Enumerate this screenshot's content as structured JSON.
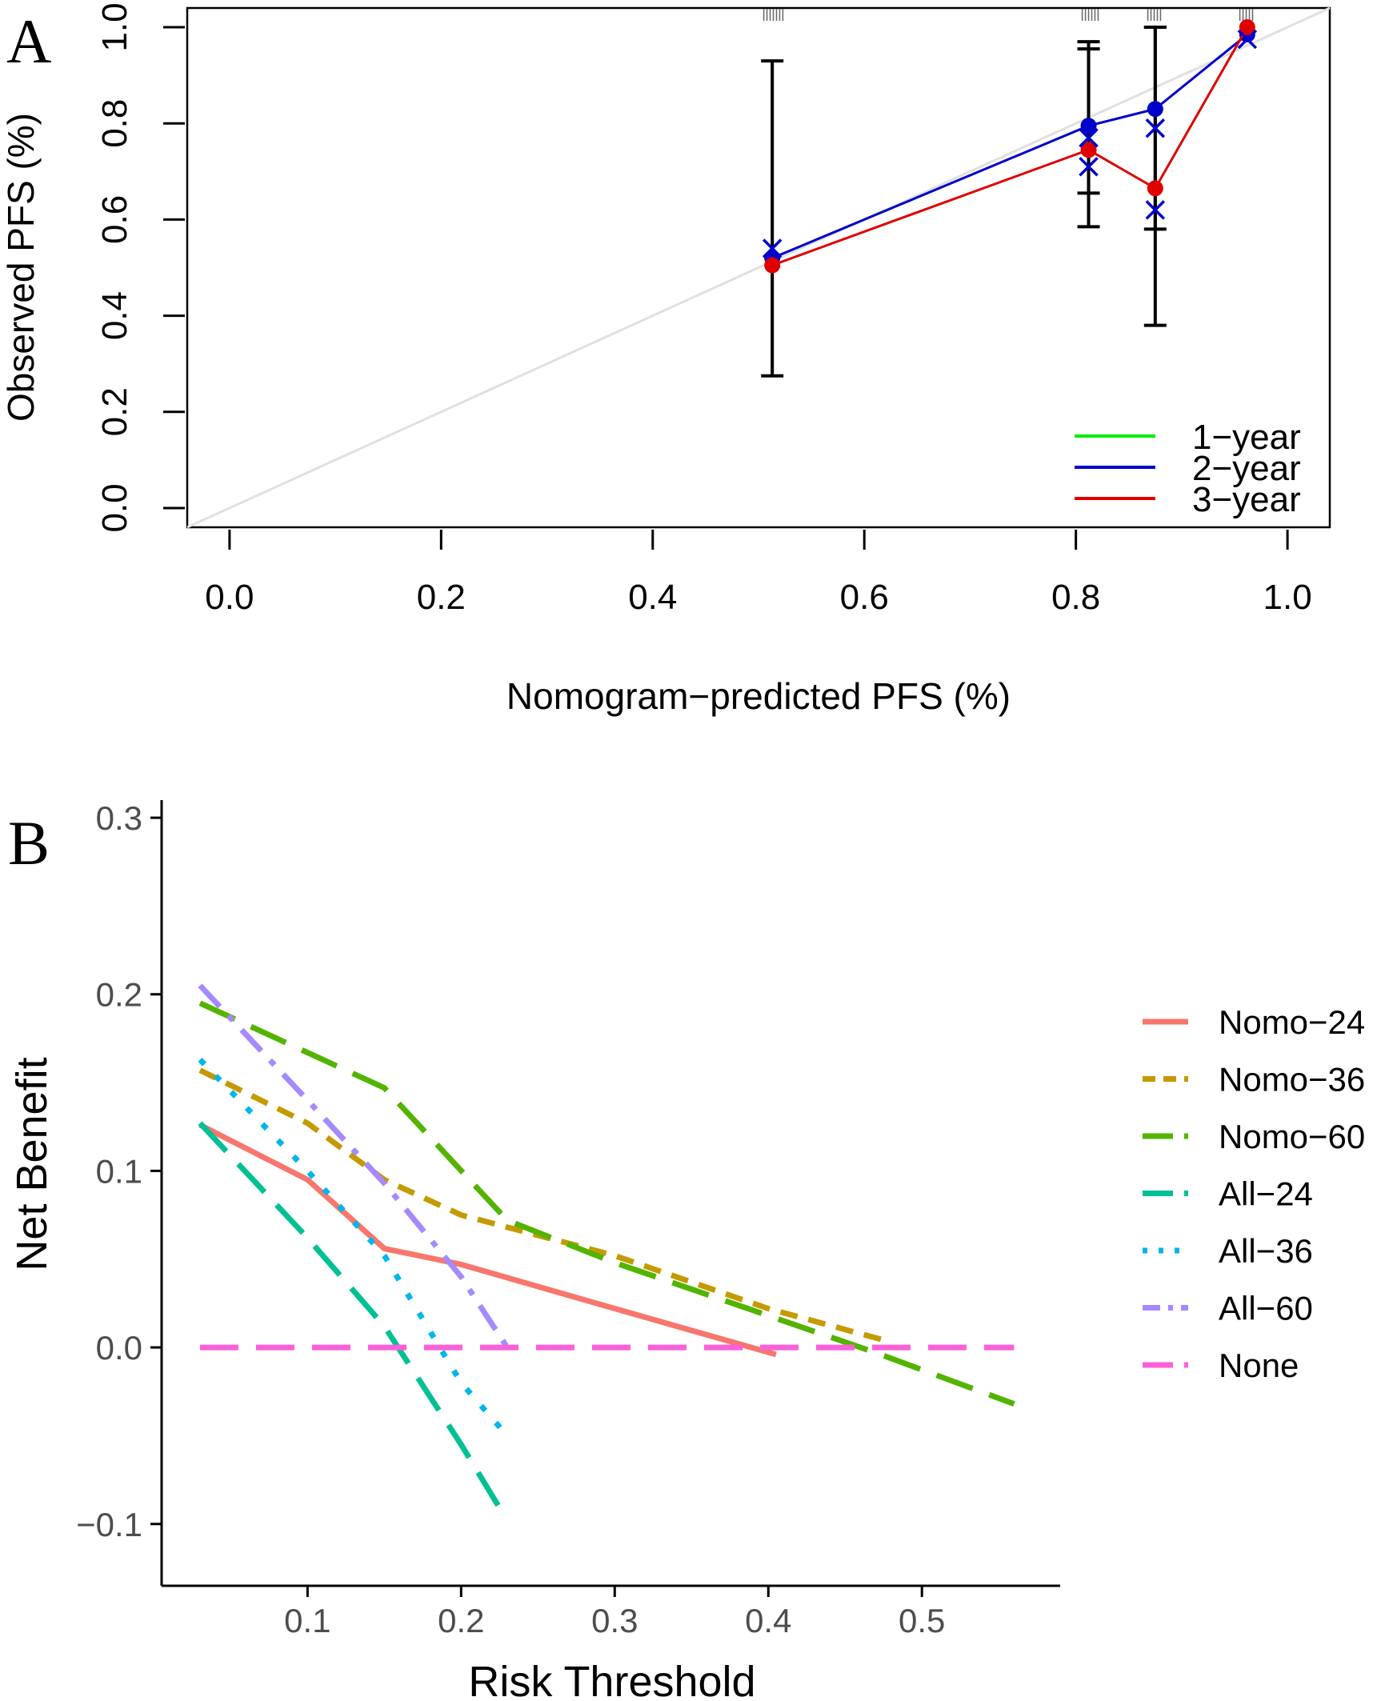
{
  "chart_data": [
    {
      "type": "line",
      "panel_label": "A",
      "xlabel": "Nomogram−predicted PFS (%)",
      "ylabel": "Observed PFS (%)",
      "xlim": [
        -0.04,
        1.04
      ],
      "ylim": [
        -0.04,
        1.04
      ],
      "x_ticks": [
        "0.0",
        "0.2",
        "0.4",
        "0.6",
        "0.8",
        "1.0"
      ],
      "y_ticks": [
        "0.0",
        "0.2",
        "0.4",
        "0.6",
        "0.8",
        "1.0"
      ],
      "reference_line": {
        "from": [
          -0.04,
          -0.04
        ],
        "to": [
          1.04,
          1.04
        ],
        "color": "#e0e0e0"
      },
      "series": [
        {
          "name": "1−year",
          "color": "#00ee00",
          "x": [],
          "y": []
        },
        {
          "name": "2−year",
          "color": "#0000cc",
          "x": [
            0.513,
            0.812,
            0.875,
            0.962
          ],
          "y": [
            0.52,
            0.795,
            0.83,
            0.985
          ]
        },
        {
          "name": "3−year",
          "color": "#e00000",
          "x": [
            0.513,
            0.812,
            0.875,
            0.962
          ],
          "y": [
            0.505,
            0.745,
            0.665,
            1.0
          ]
        }
      ],
      "x_marks": {
        "color": "#0000cc",
        "x": [
          0.513,
          0.812,
          0.812,
          0.875,
          0.875,
          0.962
        ],
        "y": [
          0.54,
          0.77,
          0.71,
          0.79,
          0.62,
          0.975
        ]
      },
      "error_bars": [
        {
          "x": 0.513,
          "lo": 0.275,
          "hi": 0.93
        },
        {
          "x": 0.812,
          "lo": 0.585,
          "hi": 0.97
        },
        {
          "x": 0.812,
          "lo": 0.655,
          "hi": 0.955
        },
        {
          "x": 0.875,
          "lo": 0.38,
          "hi": 1.0
        },
        {
          "x": 0.875,
          "lo": 0.58,
          "hi": 1.0
        }
      ],
      "rug_x": [
        0.505,
        0.508,
        0.511,
        0.514,
        0.517,
        0.52,
        0.523,
        0.806,
        0.809,
        0.812,
        0.815,
        0.818,
        0.821,
        0.868,
        0.871,
        0.874,
        0.877,
        0.88,
        0.955,
        0.958,
        0.961,
        0.964,
        0.967
      ],
      "legend_position": "bottom-right"
    },
    {
      "type": "line",
      "panel_label": "B",
      "xlabel": "Risk Threshold",
      "ylabel": "Net Benefit",
      "xlim": [
        0.005,
        0.59
      ],
      "ylim": [
        -0.135,
        0.31
      ],
      "x_ticks": [
        0.1,
        0.2,
        0.3,
        0.4,
        0.5
      ],
      "x_tick_labels": [
        "0.1",
        "0.2",
        "0.3",
        "0.4",
        "0.5"
      ],
      "y_ticks": [
        -0.1,
        0.0,
        0.1,
        0.2,
        0.3
      ],
      "y_tick_labels": [
        "−0.1",
        "0.0",
        "0.1",
        "0.2",
        "0.3"
      ],
      "legend_position": "right",
      "series": [
        {
          "name": "Nomo−24",
          "color": "#f8766d",
          "dash": "solid",
          "x": [
            0.03,
            0.1,
            0.15,
            0.2,
            0.3,
            0.405
          ],
          "y": [
            0.126,
            0.095,
            0.056,
            0.047,
            0.022,
            -0.004
          ]
        },
        {
          "name": "Nomo−36",
          "color": "#c49a00",
          "dash": "short",
          "x": [
            0.03,
            0.1,
            0.15,
            0.2,
            0.3,
            0.4,
            0.48
          ],
          "y": [
            0.157,
            0.127,
            0.095,
            0.075,
            0.052,
            0.022,
            0.003
          ]
        },
        {
          "name": "Nomo−60",
          "color": "#53b400",
          "dash": "long",
          "x": [
            0.03,
            0.15,
            0.23,
            0.3,
            0.4,
            0.47,
            0.56
          ],
          "y": [
            0.195,
            0.147,
            0.072,
            0.048,
            0.018,
            -0.003,
            -0.032
          ]
        },
        {
          "name": "All−24",
          "color": "#00c094",
          "dash": "long",
          "x": [
            0.03,
            0.1,
            0.15,
            0.2,
            0.23
          ],
          "y": [
            0.127,
            0.062,
            0.012,
            -0.055,
            -0.098
          ]
        },
        {
          "name": "All−36",
          "color": "#00b6eb",
          "dash": "dot",
          "x": [
            0.03,
            0.1,
            0.15,
            0.2,
            0.23
          ],
          "y": [
            0.163,
            0.1,
            0.052,
            -0.02,
            -0.05
          ]
        },
        {
          "name": "All−60",
          "color": "#a58aff",
          "dash": "dotdash",
          "x": [
            0.03,
            0.1,
            0.15,
            0.2,
            0.23
          ],
          "y": [
            0.205,
            0.14,
            0.093,
            0.04,
            0.0
          ]
        },
        {
          "name": "None",
          "color": "#fb61d7",
          "dash": "long",
          "x": [
            0.03,
            0.56
          ],
          "y": [
            0.0,
            0.0
          ]
        }
      ]
    }
  ]
}
